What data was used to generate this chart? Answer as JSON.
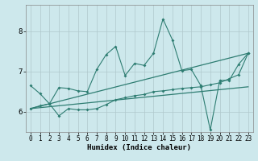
{
  "xlabel": "Humidex (Indice chaleur)",
  "ylabel": "",
  "xlim": [
    -0.5,
    23.5
  ],
  "ylim": [
    5.5,
    8.65
  ],
  "yticks": [
    6,
    7,
    8
  ],
  "xticks": [
    0,
    1,
    2,
    3,
    4,
    5,
    6,
    7,
    8,
    9,
    10,
    11,
    12,
    13,
    14,
    15,
    16,
    17,
    18,
    19,
    20,
    21,
    22,
    23
  ],
  "background_color": "#cde8ec",
  "grid_color": "#b0c8cc",
  "line_color": "#2e7d72",
  "series": {
    "line1_x": [
      0,
      1,
      2,
      3,
      4,
      5,
      6,
      7,
      8,
      9,
      10,
      11,
      12,
      13,
      14,
      15,
      16,
      17,
      18,
      19,
      20,
      21,
      22,
      23
    ],
    "line1_y": [
      6.65,
      6.45,
      6.2,
      6.6,
      6.58,
      6.52,
      6.5,
      7.05,
      7.42,
      7.62,
      6.9,
      7.2,
      7.15,
      7.45,
      8.3,
      7.78,
      7.02,
      7.05,
      6.65,
      5.55,
      6.78,
      6.78,
      7.18,
      7.45
    ],
    "line2_x": [
      0,
      1,
      2,
      3,
      4,
      5,
      6,
      7,
      8,
      9,
      10,
      11,
      12,
      13,
      14,
      15,
      16,
      17,
      18,
      19,
      20,
      21,
      22,
      23
    ],
    "line2_y": [
      6.08,
      6.15,
      6.2,
      5.9,
      6.08,
      6.05,
      6.05,
      6.08,
      6.18,
      6.3,
      6.35,
      6.4,
      6.43,
      6.5,
      6.52,
      6.55,
      6.58,
      6.6,
      6.62,
      6.67,
      6.72,
      6.82,
      6.92,
      7.45
    ],
    "trend1_x": [
      0,
      23
    ],
    "trend1_y": [
      6.08,
      6.62
    ],
    "trend2_x": [
      0,
      23
    ],
    "trend2_y": [
      6.08,
      7.45
    ]
  }
}
